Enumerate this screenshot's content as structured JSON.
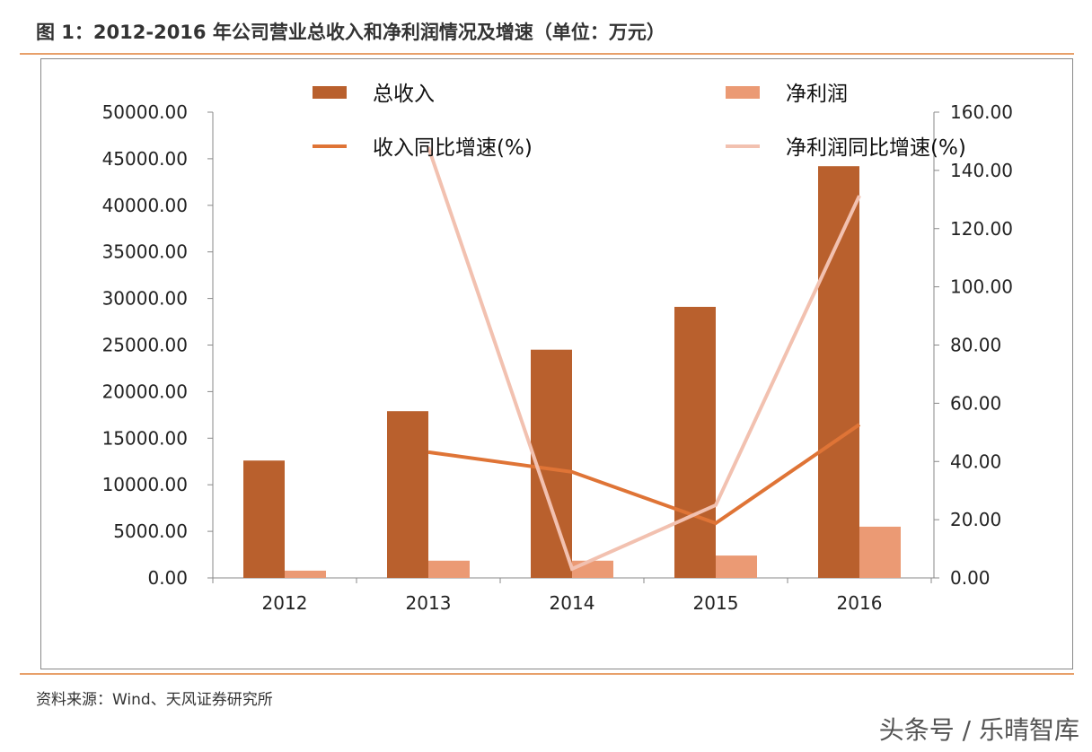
{
  "title": "图 1：2012-2016 年公司营业总收入和净利润情况及增速（单位：万元）",
  "source": "资料来源：Wind、天风证券研究所",
  "watermark": "头条号 / 乐晴智库",
  "chart_data": {
    "type": "bar+line",
    "categories": [
      "2012",
      "2013",
      "2014",
      "2015",
      "2016"
    ],
    "y_left": {
      "range": [
        0,
        50000
      ],
      "ticks": [
        "0.00",
        "5000.00",
        "10000.00",
        "15000.00",
        "20000.00",
        "25000.00",
        "30000.00",
        "35000.00",
        "40000.00",
        "45000.00",
        "50000.00"
      ]
    },
    "y_right": {
      "range": [
        0,
        160
      ],
      "ticks": [
        "0.00",
        "20.00",
        "40.00",
        "60.00",
        "80.00",
        "100.00",
        "120.00",
        "140.00",
        "160.00"
      ]
    },
    "series": [
      {
        "name": "总收入",
        "type": "bar",
        "axis": "left",
        "color": "#b9602d",
        "values": [
          12600,
          17900,
          24500,
          29100,
          44200
        ]
      },
      {
        "name": "净利润",
        "type": "bar",
        "axis": "left",
        "color": "#eb9a74",
        "values": [
          780,
          1850,
          1850,
          2400,
          5500
        ]
      },
      {
        "name": "收入同比增速(%)",
        "type": "line",
        "axis": "right",
        "color": "#df7436",
        "values": [
          null,
          43.2,
          36.4,
          18.8,
          52.7
        ]
      },
      {
        "name": "净利润同比增速(%)",
        "type": "line",
        "axis": "right",
        "color": "#f2c1b0",
        "values": [
          null,
          148,
          3.1,
          25,
          131.3
        ]
      }
    ],
    "legend": "top",
    "grid": false
  }
}
